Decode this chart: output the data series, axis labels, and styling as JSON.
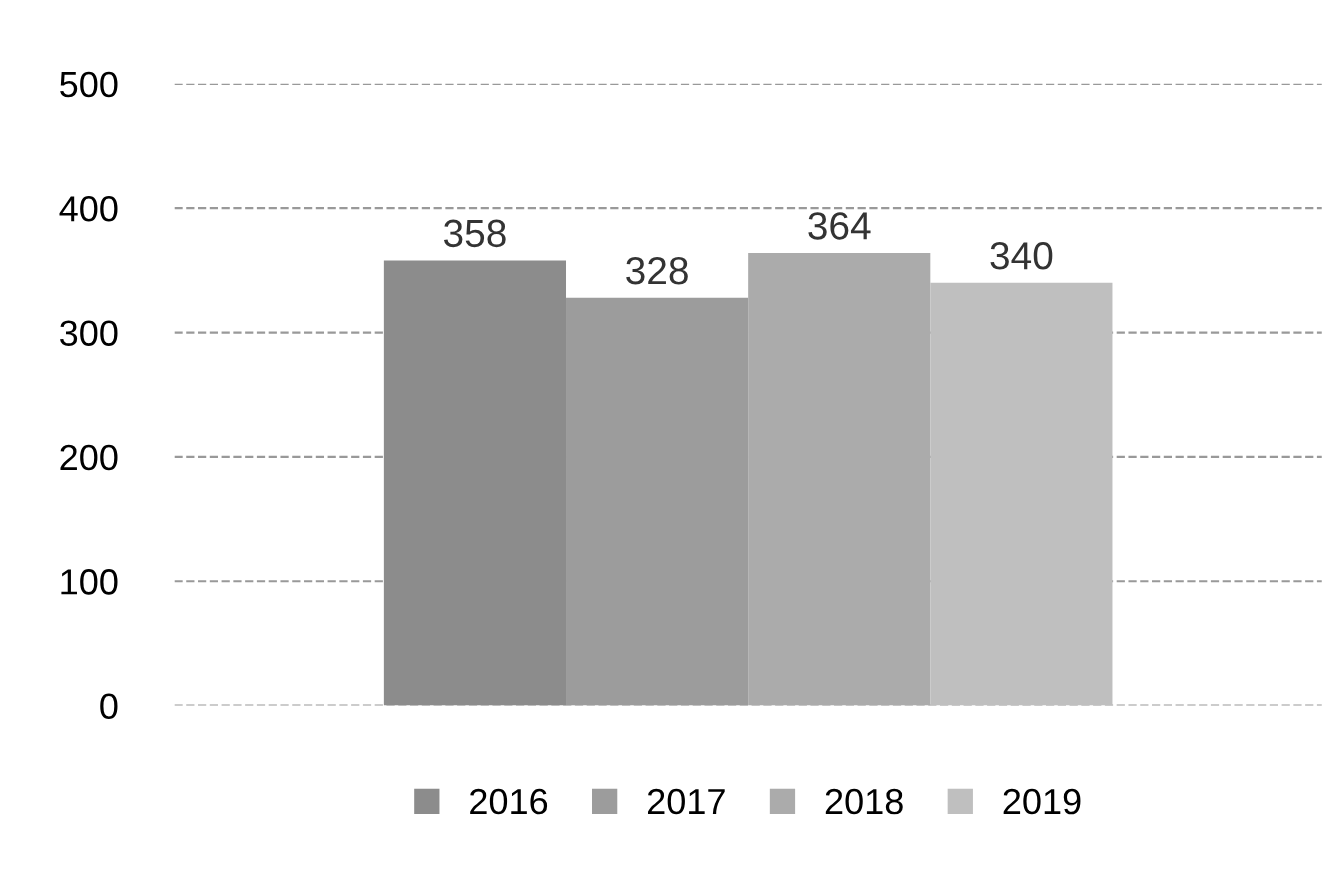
{
  "chart_data": {
    "type": "bar",
    "categories": [
      null
    ],
    "series": [
      {
        "name": "2016",
        "color": "#8c8c8c",
        "values": [
          358
        ]
      },
      {
        "name": "2017",
        "color": "#9c9c9c",
        "values": [
          328
        ]
      },
      {
        "name": "2018",
        "color": "#ababab",
        "values": [
          364
        ]
      },
      {
        "name": "2019",
        "color": "#bfbfbf",
        "values": [
          340
        ]
      }
    ],
    "ylim": [
      0,
      500
    ],
    "yticks": [
      0,
      100,
      200,
      300,
      400,
      500
    ],
    "grid": "y",
    "legend": "bottom",
    "data_labels": true
  }
}
